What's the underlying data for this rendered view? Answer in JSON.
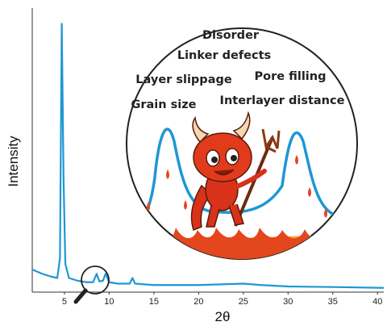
{
  "chart_data": {
    "type": "line",
    "x_label": "2θ",
    "y_label": "Intensity",
    "x": [
      1.4,
      2.5,
      3.5,
      4.2,
      4.5,
      4.7,
      4.9,
      5.1,
      5.5,
      6.5,
      7.5,
      8.2,
      8.6,
      8.9,
      9.3,
      9.6,
      10.0,
      11,
      12.3,
      12.6,
      12.9,
      15,
      20,
      25,
      27,
      30,
      35,
      40.7
    ],
    "values": [
      8,
      6.5,
      5.5,
      5,
      12,
      95,
      40,
      10,
      5,
      4,
      3.5,
      3.5,
      6.5,
      3.8,
      4,
      6.5,
      3.5,
      3,
      3,
      5,
      3,
      2.5,
      2.5,
      3,
      2.5,
      2,
      1.8,
      1.5
    ],
    "color": "#1f97d4",
    "xlim": [
      1.4,
      40.7
    ],
    "ylim": [
      0,
      100
    ],
    "xticks": [
      5,
      10,
      15,
      20,
      25,
      30,
      35,
      40
    ],
    "annotations": [
      "Disorder",
      "Linker defects",
      "Layer slippage",
      "Pore filling",
      "Grain size",
      "Interlayer distance"
    ]
  }
}
